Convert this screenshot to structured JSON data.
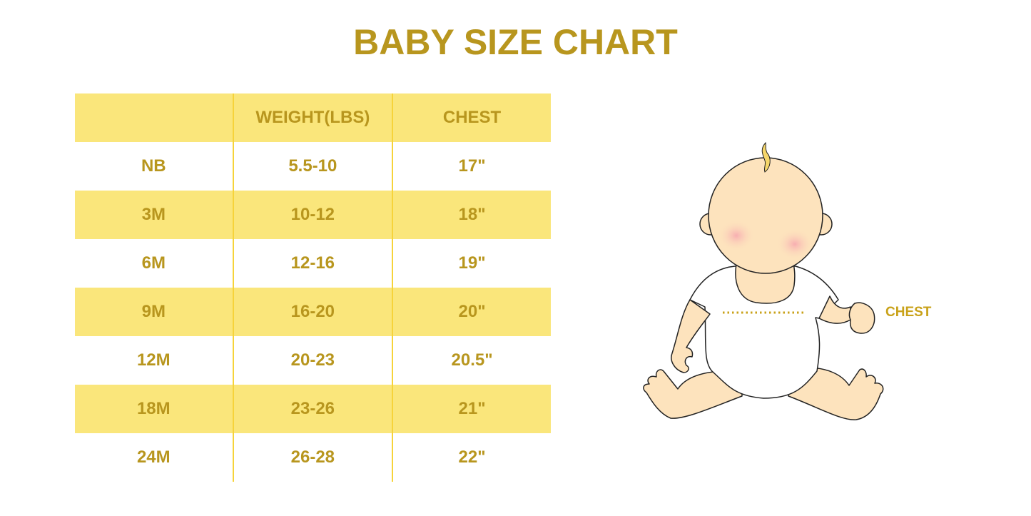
{
  "title": "BABY SIZE CHART",
  "table": {
    "headers": [
      "",
      "WEIGHT(LBS)",
      "CHEST"
    ],
    "rows": [
      [
        "NB",
        "5.5-10",
        "17\""
      ],
      [
        "3M",
        "10-12",
        "18\""
      ],
      [
        "6M",
        "12-16",
        "19\""
      ],
      [
        "9M",
        "16-20",
        "20\""
      ],
      [
        "12M",
        "20-23",
        "20.5\""
      ],
      [
        "18M",
        "23-26",
        "21\""
      ],
      [
        "24M",
        "26-28",
        "22\""
      ]
    ]
  },
  "illustration": {
    "chest_label": "CHEST"
  },
  "colors": {
    "text": "#b8961e",
    "band": "#fae67b",
    "divider": "#f6d33a",
    "skin": "#fde3bd"
  }
}
